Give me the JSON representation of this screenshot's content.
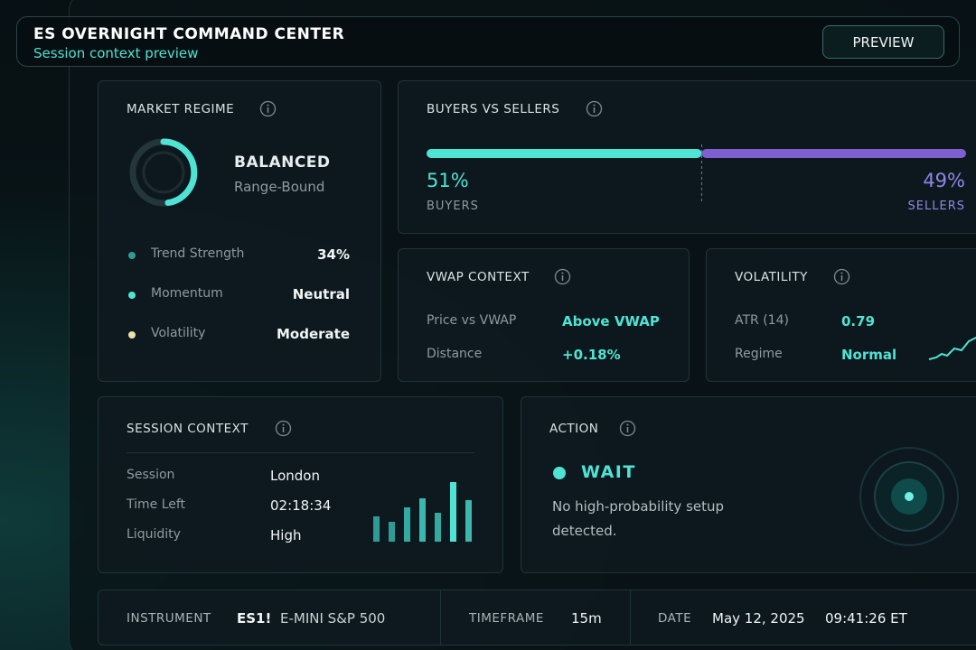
{
  "header": {
    "title": "ES OVERNIGHT COMMAND CENTER",
    "subtitle": "Session context preview",
    "button": "PREVIEW"
  },
  "market_regime": {
    "title": "MARKET REGIME",
    "state": "BALANCED",
    "state_detail": "Range-Bound",
    "rows": [
      {
        "label": "Trend Strength",
        "value": "34%"
      },
      {
        "label": "Momentum",
        "value": "Neutral"
      },
      {
        "label": "Volatility",
        "value": "Moderate"
      }
    ]
  },
  "buyers_sellers": {
    "title": "BUYERS VS SELLERS",
    "buyers": {
      "value": 51,
      "value_label": "51%",
      "label": "BUYERS"
    },
    "sellers": {
      "value": 49,
      "value_label": "49%",
      "label": "SELLERS"
    }
  },
  "vwap": {
    "title": "VWAP CONTEXT",
    "rows": [
      {
        "label": "Price vs VWAP",
        "value": "Above VWAP"
      },
      {
        "label": "Distance",
        "value": "+0.18%"
      }
    ]
  },
  "volatility": {
    "title": "VOLATILITY",
    "rows": [
      {
        "label": "ATR (14)",
        "value": "0.79"
      },
      {
        "label": "Regime",
        "value": "Normal"
      }
    ]
  },
  "session": {
    "title": "SESSION CONTEXT",
    "rows": [
      {
        "label": "Session",
        "value": "London"
      },
      {
        "label": "Time Left",
        "value": "02:18:34"
      },
      {
        "label": "Liquidity",
        "value": "High"
      }
    ]
  },
  "action": {
    "title": "ACTION",
    "signal": "WAIT",
    "message": "No high-probability setup detected."
  },
  "footer": {
    "instrument_label": "INSTRUMENT",
    "instrument_symbol": "ES1!",
    "instrument_name": "E-MINI S&P 500",
    "timeframe_label": "TIMEFRAME",
    "timeframe": "15m",
    "date_label": "DATE",
    "date": "May 12, 2025",
    "time": "09:41:26 ET"
  }
}
